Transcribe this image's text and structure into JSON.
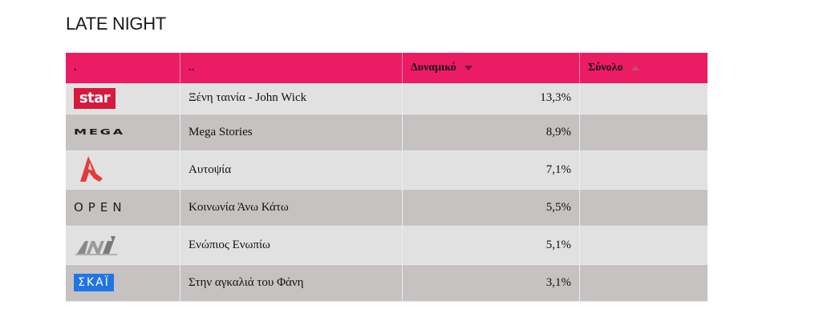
{
  "section_title": "LATE NIGHT",
  "table": {
    "headers": [
      ".",
      "..",
      "Δυναμικό",
      "Σύνολο"
    ],
    "rows": [
      {
        "channel": "STAR",
        "logo_text": "star",
        "program": "Ξένη ταινία - John Wick",
        "dynamic": "13,3%",
        "total": ""
      },
      {
        "channel": "MEGA",
        "logo_text": "MEGA",
        "program": "Mega Stories",
        "dynamic": "8,9%",
        "total": ""
      },
      {
        "channel": "ALPHA",
        "logo_text": "",
        "program": "Αυτοψία",
        "dynamic": "7,1%",
        "total": ""
      },
      {
        "channel": "OPEN",
        "logo_text": "OPEN",
        "program": "Κοινωνία Άνω Κάτω",
        "dynamic": "5,5%",
        "total": ""
      },
      {
        "channel": "ANT1",
        "logo_text": "",
        "program": "Ενώπιος Ενωπίω",
        "dynamic": "5,1%",
        "total": ""
      },
      {
        "channel": "SKAI",
        "logo_text": "ΣΚΑΪ",
        "program": "Στην αγκαλιά του Φάνη",
        "dynamic": "3,1%",
        "total": ""
      }
    ]
  },
  "colors": {
    "header_bg": "#ec1c64",
    "row_light": "#e2e1e1",
    "row_dark": "#c6c2c1",
    "star_red": "#d7193f",
    "alpha_red": "#e63a3a",
    "skai_blue": "#2174e6"
  },
  "icons": [
    "star-logo",
    "mega-logo",
    "alpha-logo",
    "open-logo",
    "ant1-logo",
    "skai-logo",
    "sort-desc-icon",
    "sort-asc-icon"
  ]
}
